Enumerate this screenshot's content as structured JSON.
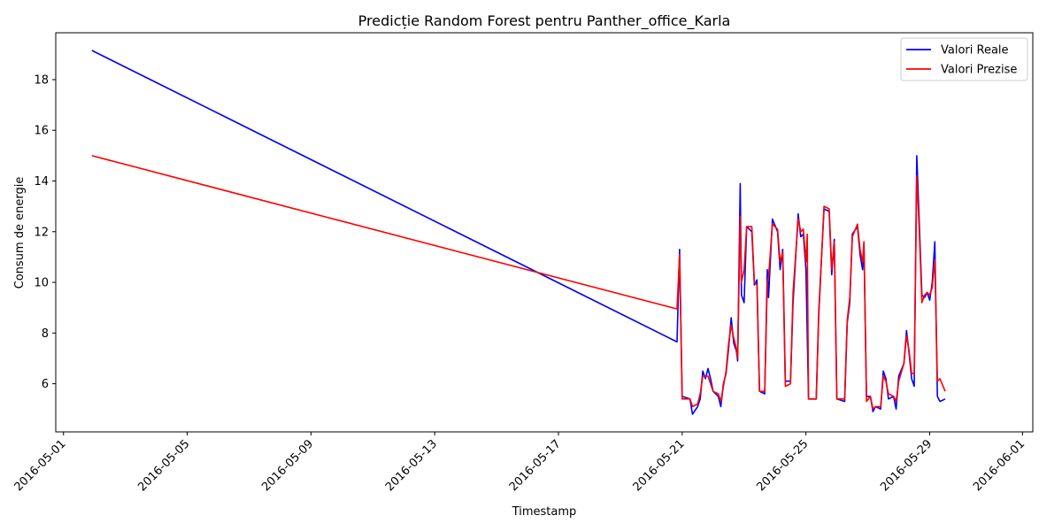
{
  "chart_data": {
    "type": "line",
    "title": "Predicție Random Forest pentru Panther_office_Karla",
    "xlabel": "Timestamp",
    "ylabel": "Consum de energie",
    "xlim": [
      "2016-04-30T18:00",
      "2016-06-01T08:00"
    ],
    "ylim": [
      4.1,
      19.85
    ],
    "x_ticks": [
      "2016-05-01",
      "2016-05-05",
      "2016-05-09",
      "2016-05-13",
      "2016-05-17",
      "2016-05-21",
      "2016-05-25",
      "2016-05-29",
      "2016-06-01"
    ],
    "y_ticks": [
      6,
      8,
      10,
      12,
      14,
      16,
      18
    ],
    "grid": false,
    "legend_position": "top-right",
    "series": [
      {
        "name": "Valori Reale",
        "color": "#0000ff",
        "points": [
          [
            "2016-05-01T22:00",
            19.15
          ],
          [
            "2016-05-20T20:00",
            7.65
          ],
          [
            "2016-05-20T22:00",
            11.3
          ],
          [
            "2016-05-21T00:00",
            5.5
          ],
          [
            "2016-05-21T06:00",
            5.4
          ],
          [
            "2016-05-21T08:00",
            4.8
          ],
          [
            "2016-05-21T12:00",
            5.1
          ],
          [
            "2016-05-21T14:00",
            5.4
          ],
          [
            "2016-05-21T16:00",
            6.5
          ],
          [
            "2016-05-21T18:00",
            6.2
          ],
          [
            "2016-05-21T20:00",
            6.6
          ],
          [
            "2016-05-21T22:00",
            6.2
          ],
          [
            "2016-05-22T00:00",
            5.7
          ],
          [
            "2016-05-22T04:00",
            5.5
          ],
          [
            "2016-05-22T06:00",
            5.1
          ],
          [
            "2016-05-22T08:00",
            6.0
          ],
          [
            "2016-05-22T10:00",
            6.4
          ],
          [
            "2016-05-22T12:00",
            7.4
          ],
          [
            "2016-05-22T14:00",
            8.6
          ],
          [
            "2016-05-22T16:00",
            7.6
          ],
          [
            "2016-05-22T18:00",
            7.3
          ],
          [
            "2016-05-22T19:00",
            6.9
          ],
          [
            "2016-05-22T21:00",
            13.9
          ],
          [
            "2016-05-22T22:00",
            9.5
          ],
          [
            "2016-05-23T00:00",
            9.2
          ],
          [
            "2016-05-23T02:00",
            12.2
          ],
          [
            "2016-05-23T06:00",
            12.0
          ],
          [
            "2016-05-23T08:00",
            9.9
          ],
          [
            "2016-05-23T10:00",
            10.1
          ],
          [
            "2016-05-23T12:00",
            5.7
          ],
          [
            "2016-05-23T16:00",
            5.6
          ],
          [
            "2016-05-23T18:00",
            10.5
          ],
          [
            "2016-05-23T19:00",
            9.4
          ],
          [
            "2016-05-23T22:00",
            12.5
          ],
          [
            "2016-05-24T02:00",
            12.0
          ],
          [
            "2016-05-24T04:00",
            10.5
          ],
          [
            "2016-05-24T06:00",
            11.3
          ],
          [
            "2016-05-24T08:00",
            6.1
          ],
          [
            "2016-05-24T12:00",
            6.1
          ],
          [
            "2016-05-24T14:00",
            9.2
          ],
          [
            "2016-05-24T18:00",
            12.7
          ],
          [
            "2016-05-24T20:00",
            11.8
          ],
          [
            "2016-05-24T22:00",
            11.9
          ],
          [
            "2016-05-25T00:00",
            10.5
          ],
          [
            "2016-05-25T02:00",
            5.4
          ],
          [
            "2016-05-25T08:00",
            5.4
          ],
          [
            "2016-05-25T10:00",
            8.9
          ],
          [
            "2016-05-25T14:00",
            12.9
          ],
          [
            "2016-05-25T18:00",
            12.8
          ],
          [
            "2016-05-25T20:00",
            10.3
          ],
          [
            "2016-05-25T22:00",
            11.7
          ],
          [
            "2016-05-26T00:00",
            5.4
          ],
          [
            "2016-05-26T06:00",
            5.3
          ],
          [
            "2016-05-26T08:00",
            8.4
          ],
          [
            "2016-05-26T10:00",
            9.2
          ],
          [
            "2016-05-26T12:00",
            11.9
          ],
          [
            "2016-05-26T16:00",
            12.2
          ],
          [
            "2016-05-26T18:00",
            11.1
          ],
          [
            "2016-05-26T20:00",
            10.5
          ],
          [
            "2016-05-26T21:00",
            11.5
          ],
          [
            "2016-05-26T23:00",
            5.5
          ],
          [
            "2016-05-27T02:00",
            5.5
          ],
          [
            "2016-05-27T04:00",
            4.9
          ],
          [
            "2016-05-27T06:00",
            5.1
          ],
          [
            "2016-05-27T10:00",
            5.0
          ],
          [
            "2016-05-27T12:00",
            6.5
          ],
          [
            "2016-05-27T14:00",
            6.2
          ],
          [
            "2016-05-27T16:00",
            5.4
          ],
          [
            "2016-05-27T20:00",
            5.5
          ],
          [
            "2016-05-27T22:00",
            5.0
          ],
          [
            "2016-05-28T00:00",
            6.3
          ],
          [
            "2016-05-28T04:00",
            6.8
          ],
          [
            "2016-05-28T06:00",
            8.1
          ],
          [
            "2016-05-28T08:00",
            7.2
          ],
          [
            "2016-05-28T10:00",
            6.2
          ],
          [
            "2016-05-28T12:00",
            5.9
          ],
          [
            "2016-05-28T14:00",
            15.0
          ],
          [
            "2016-05-28T16:00",
            12.3
          ],
          [
            "2016-05-28T18:00",
            9.5
          ],
          [
            "2016-05-28T20:00",
            9.4
          ],
          [
            "2016-05-28T22:00",
            9.6
          ],
          [
            "2016-05-29T00:00",
            9.3
          ],
          [
            "2016-05-29T02:00",
            10.0
          ],
          [
            "2016-05-29T04:00",
            11.6
          ],
          [
            "2016-05-29T06:00",
            5.5
          ],
          [
            "2016-05-29T08:00",
            5.3
          ],
          [
            "2016-05-29T12:00",
            5.4
          ]
        ]
      },
      {
        "name": "Valori Prezise",
        "color": "#ff0000",
        "points": [
          [
            "2016-05-01T22:00",
            15.0
          ],
          [
            "2016-05-20T20:00",
            8.95
          ],
          [
            "2016-05-20T22:00",
            11.1
          ],
          [
            "2016-05-21T00:00",
            5.4
          ],
          [
            "2016-05-21T06:00",
            5.4
          ],
          [
            "2016-05-21T08:00",
            5.1
          ],
          [
            "2016-05-21T12:00",
            5.2
          ],
          [
            "2016-05-21T14:00",
            5.6
          ],
          [
            "2016-05-21T16:00",
            6.3
          ],
          [
            "2016-05-21T18:00",
            6.3
          ],
          [
            "2016-05-21T20:00",
            6.3
          ],
          [
            "2016-05-21T22:00",
            6.0
          ],
          [
            "2016-05-22T00:00",
            5.7
          ],
          [
            "2016-05-22T04:00",
            5.6
          ],
          [
            "2016-05-22T06:00",
            5.3
          ],
          [
            "2016-05-22T08:00",
            5.9
          ],
          [
            "2016-05-22T10:00",
            6.5
          ],
          [
            "2016-05-22T12:00",
            7.6
          ],
          [
            "2016-05-22T14:00",
            8.3
          ],
          [
            "2016-05-22T16:00",
            7.8
          ],
          [
            "2016-05-22T18:00",
            7.4
          ],
          [
            "2016-05-22T19:00",
            7.0
          ],
          [
            "2016-05-22T21:00",
            12.6
          ],
          [
            "2016-05-22T22:00",
            10.0
          ],
          [
            "2016-05-23T00:00",
            10.5
          ],
          [
            "2016-05-23T02:00",
            12.2
          ],
          [
            "2016-05-23T06:00",
            12.2
          ],
          [
            "2016-05-23T08:00",
            10.0
          ],
          [
            "2016-05-23T10:00",
            9.9
          ],
          [
            "2016-05-23T12:00",
            5.7
          ],
          [
            "2016-05-23T16:00",
            5.7
          ],
          [
            "2016-05-23T18:00",
            10.0
          ],
          [
            "2016-05-23T19:00",
            10.2
          ],
          [
            "2016-05-23T22:00",
            12.3
          ],
          [
            "2016-05-24T02:00",
            12.1
          ],
          [
            "2016-05-24T04:00",
            10.8
          ],
          [
            "2016-05-24T06:00",
            11.2
          ],
          [
            "2016-05-24T08:00",
            5.9
          ],
          [
            "2016-05-24T12:00",
            6.0
          ],
          [
            "2016-05-24T14:00",
            9.6
          ],
          [
            "2016-05-24T18:00",
            12.5
          ],
          [
            "2016-05-24T20:00",
            12.0
          ],
          [
            "2016-05-24T22:00",
            12.1
          ],
          [
            "2016-05-25T00:00",
            10.8
          ],
          [
            "2016-05-25T01:00",
            11.9
          ],
          [
            "2016-05-25T02:00",
            5.4
          ],
          [
            "2016-05-25T08:00",
            5.4
          ],
          [
            "2016-05-25T10:00",
            8.7
          ],
          [
            "2016-05-25T14:00",
            13.0
          ],
          [
            "2016-05-25T18:00",
            12.9
          ],
          [
            "2016-05-25T20:00",
            10.5
          ],
          [
            "2016-05-25T22:00",
            11.6
          ],
          [
            "2016-05-26T00:00",
            5.4
          ],
          [
            "2016-05-26T06:00",
            5.4
          ],
          [
            "2016-05-26T08:00",
            8.5
          ],
          [
            "2016-05-26T10:00",
            9.4
          ],
          [
            "2016-05-26T12:00",
            11.8
          ],
          [
            "2016-05-26T16:00",
            12.3
          ],
          [
            "2016-05-26T18:00",
            11.3
          ],
          [
            "2016-05-26T20:00",
            10.8
          ],
          [
            "2016-05-26T21:00",
            11.6
          ],
          [
            "2016-05-26T23:00",
            5.3
          ],
          [
            "2016-05-27T02:00",
            5.5
          ],
          [
            "2016-05-27T04:00",
            5.0
          ],
          [
            "2016-05-27T06:00",
            5.1
          ],
          [
            "2016-05-27T10:00",
            5.1
          ],
          [
            "2016-05-27T12:00",
            6.3
          ],
          [
            "2016-05-27T14:00",
            6.1
          ],
          [
            "2016-05-27T16:00",
            5.6
          ],
          [
            "2016-05-27T20:00",
            5.5
          ],
          [
            "2016-05-27T22:00",
            5.3
          ],
          [
            "2016-05-28T00:00",
            6.1
          ],
          [
            "2016-05-28T04:00",
            6.8
          ],
          [
            "2016-05-28T06:00",
            7.9
          ],
          [
            "2016-05-28T08:00",
            7.3
          ],
          [
            "2016-05-28T10:00",
            6.4
          ],
          [
            "2016-05-28T12:00",
            6.4
          ],
          [
            "2016-05-28T14:00",
            14.2
          ],
          [
            "2016-05-28T16:00",
            12.0
          ],
          [
            "2016-05-28T18:00",
            9.2
          ],
          [
            "2016-05-28T20:00",
            9.5
          ],
          [
            "2016-05-28T22:00",
            9.6
          ],
          [
            "2016-05-29T00:00",
            9.5
          ],
          [
            "2016-05-29T02:00",
            9.8
          ],
          [
            "2016-05-29T04:00",
            10.9
          ],
          [
            "2016-05-29T06:00",
            6.1
          ],
          [
            "2016-05-29T08:00",
            6.2
          ],
          [
            "2016-05-29T12:00",
            5.7
          ]
        ]
      }
    ]
  }
}
